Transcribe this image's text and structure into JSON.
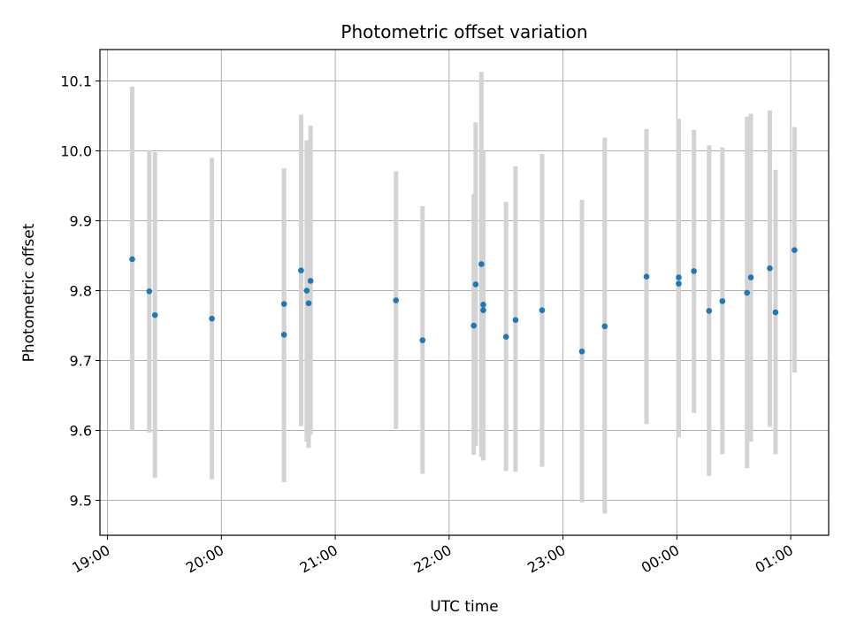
{
  "chart_data": {
    "type": "scatter",
    "title": "Photometric offset variation",
    "xlabel": "UTC time",
    "ylabel": "Photometric offset",
    "x_kind": "time",
    "xlim": [
      "18:56",
      "01:20"
    ],
    "ylim": [
      9.45,
      10.145
    ],
    "grid": true,
    "x_ticks": [
      "19:00",
      "20:00",
      "21:00",
      "22:00",
      "23:00",
      "00:00",
      "01:00"
    ],
    "x_tick_times": [
      "19:00",
      "20:00",
      "21:00",
      "22:00",
      "23:00",
      "00:00",
      "01:00"
    ],
    "y_ticks": [
      9.5,
      9.6,
      9.7,
      9.8,
      9.9,
      10.0,
      10.1
    ],
    "y_tick_labels": [
      "9.5",
      "9.6",
      "9.7",
      "9.8",
      "9.9",
      "10.0",
      "10.1"
    ],
    "colors": {
      "point": "#1f77b4",
      "errorbar": "#d3d3d3",
      "grid": "#b0b0b0"
    },
    "points": [
      {
        "x": "19:13",
        "y": 9.845,
        "y_low": 9.6,
        "y_high": 10.092
      },
      {
        "x": "19:22",
        "y": 9.799,
        "y_low": 9.597,
        "y_high": 10.001
      },
      {
        "x": "19:25",
        "y": 9.765,
        "y_low": 9.532,
        "y_high": 9.998
      },
      {
        "x": "19:55",
        "y": 9.76,
        "y_low": 9.53,
        "y_high": 9.99
      },
      {
        "x": "20:33",
        "y": 9.781,
        "y_low": 9.612,
        "y_high": 9.95
      },
      {
        "x": "20:33",
        "y": 9.737,
        "y_low": 9.526,
        "y_high": 9.975
      },
      {
        "x": "20:42",
        "y": 9.829,
        "y_low": 9.606,
        "y_high": 10.052
      },
      {
        "x": "20:45",
        "y": 9.8,
        "y_low": 9.584,
        "y_high": 10.015
      },
      {
        "x": "20:46",
        "y": 9.782,
        "y_low": 9.575,
        "y_high": 9.99
      },
      {
        "x": "20:47",
        "y": 9.814,
        "y_low": 9.594,
        "y_high": 10.036
      },
      {
        "x": "21:32",
        "y": 9.786,
        "y_low": 9.602,
        "y_high": 9.971
      },
      {
        "x": "21:46",
        "y": 9.729,
        "y_low": 9.538,
        "y_high": 9.921
      },
      {
        "x": "22:13",
        "y": 9.75,
        "y_low": 9.565,
        "y_high": 9.938
      },
      {
        "x": "22:14",
        "y": 9.809,
        "y_low": 9.578,
        "y_high": 10.041
      },
      {
        "x": "22:17",
        "y": 9.838,
        "y_low": 9.562,
        "y_high": 10.113
      },
      {
        "x": "22:18",
        "y": 9.78,
        "y_low": 9.56,
        "y_high": 10.0
      },
      {
        "x": "22:18",
        "y": 9.772,
        "y_low": 9.557,
        "y_high": 9.99
      },
      {
        "x": "22:30",
        "y": 9.734,
        "y_low": 9.542,
        "y_high": 9.927
      },
      {
        "x": "22:35",
        "y": 9.758,
        "y_low": 9.541,
        "y_high": 9.978
      },
      {
        "x": "22:49",
        "y": 9.772,
        "y_low": 9.548,
        "y_high": 9.996
      },
      {
        "x": "23:10",
        "y": 9.713,
        "y_low": 9.497,
        "y_high": 9.93
      },
      {
        "x": "23:22",
        "y": 9.749,
        "y_low": 9.481,
        "y_high": 10.019
      },
      {
        "x": "23:44",
        "y": 9.82,
        "y_low": 9.609,
        "y_high": 10.031
      },
      {
        "x": "00:01",
        "y": 9.81,
        "y_low": 9.59,
        "y_high": 10.03
      },
      {
        "x": "00:01",
        "y": 9.819,
        "y_low": 9.592,
        "y_high": 10.046
      },
      {
        "x": "00:09",
        "y": 9.828,
        "y_low": 9.625,
        "y_high": 10.03
      },
      {
        "x": "00:17",
        "y": 9.771,
        "y_low": 9.535,
        "y_high": 10.008
      },
      {
        "x": "00:24",
        "y": 9.785,
        "y_low": 9.566,
        "y_high": 10.005
      },
      {
        "x": "00:37",
        "y": 9.797,
        "y_low": 9.546,
        "y_high": 10.049
      },
      {
        "x": "00:39",
        "y": 9.819,
        "y_low": 9.584,
        "y_high": 10.053
      },
      {
        "x": "00:49",
        "y": 9.832,
        "y_low": 9.605,
        "y_high": 10.058
      },
      {
        "x": "00:52",
        "y": 9.769,
        "y_low": 9.566,
        "y_high": 9.973
      },
      {
        "x": "01:02",
        "y": 9.858,
        "y_low": 9.683,
        "y_high": 10.034
      }
    ]
  }
}
